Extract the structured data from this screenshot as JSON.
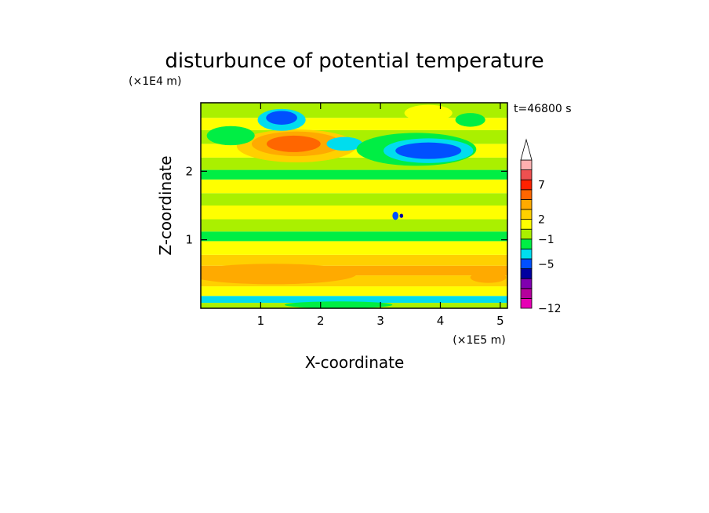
{
  "chart_data": {
    "type": "heatmap",
    "title": "disturbunce of potential temperature",
    "xlabel": "X-coordinate",
    "ylabel": "Z-coordinate",
    "x_unit": "(×1E5 m)",
    "y_unit": "(×1E4 m)",
    "time_label": "t=46800 s",
    "xlim": [
      0,
      5.12
    ],
    "ylim": [
      0,
      3.0
    ],
    "x_ticks": [
      1,
      2,
      3,
      4,
      5
    ],
    "y_ticks": [
      1,
      2
    ],
    "x_tick_labels": [
      "1",
      "2",
      "3",
      "4",
      "5"
    ],
    "y_tick_labels": [
      "1",
      "2"
    ],
    "colorbar": {
      "labels": [
        {
          "value": 7,
          "text": "7"
        },
        {
          "value": 2,
          "text": "2"
        },
        {
          "value": -1,
          "text": "−1"
        },
        {
          "value": -5,
          "text": "−5"
        },
        {
          "value": -12,
          "text": "−12"
        }
      ],
      "level_colors": [
        "#e600b4",
        "#b4009c",
        "#8000b0",
        "#0000a0",
        "#0050ff",
        "#00ddee",
        "#00ee44",
        "#aaf000",
        "#ffff00",
        "#ffd000",
        "#ffaa00",
        "#ff6600",
        "#ff2200",
        "#ee5050",
        "#ffb0b0"
      ],
      "extend": "max"
    },
    "bands": [
      {
        "zb": 0.0,
        "zt": 0.08,
        "cat": 4
      },
      {
        "zb": 0.08,
        "zt": 0.18,
        "cat": 2
      },
      {
        "zb": 0.18,
        "zt": 0.32,
        "cat": 5
      },
      {
        "zb": 0.32,
        "zt": 0.48,
        "cat": 6
      },
      {
        "zb": 0.48,
        "zt": 0.62,
        "cat": 7
      },
      {
        "zb": 0.62,
        "zt": 0.78,
        "cat": 6
      },
      {
        "zb": 0.78,
        "zt": 0.98,
        "cat": 5
      },
      {
        "zb": 0.98,
        "zt": 1.12,
        "cat": 3
      },
      {
        "zb": 1.12,
        "zt": 1.3,
        "cat": 4
      },
      {
        "zb": 1.3,
        "zt": 1.5,
        "cat": 5
      },
      {
        "zb": 1.5,
        "zt": 1.68,
        "cat": 4
      },
      {
        "zb": 1.68,
        "zt": 1.88,
        "cat": 5
      },
      {
        "zb": 1.88,
        "zt": 2.02,
        "cat": 3
      },
      {
        "zb": 2.02,
        "zt": 2.2,
        "cat": 4
      },
      {
        "zb": 2.2,
        "zt": 2.4,
        "cat": 5
      },
      {
        "zb": 2.4,
        "zt": 2.6,
        "cat": 4
      },
      {
        "zb": 2.6,
        "zt": 2.78,
        "cat": 5
      },
      {
        "zb": 2.78,
        "zt": 3.0,
        "cat": 4
      }
    ],
    "blobs": [
      {
        "x": 1.6,
        "z": 2.37,
        "rx": 1.0,
        "rz": 0.24,
        "cat": 6
      },
      {
        "x": 1.6,
        "z": 2.4,
        "rx": 0.75,
        "rz": 0.18,
        "cat": 7
      },
      {
        "x": 1.55,
        "z": 2.4,
        "rx": 0.45,
        "rz": 0.12,
        "cat": 8
      },
      {
        "x": 0.5,
        "z": 2.52,
        "rx": 0.4,
        "rz": 0.14,
        "cat": 3
      },
      {
        "x": 1.35,
        "z": 2.75,
        "rx": 0.4,
        "rz": 0.16,
        "cat": 2
      },
      {
        "x": 1.35,
        "z": 2.78,
        "rx": 0.26,
        "rz": 0.1,
        "cat": 1
      },
      {
        "x": 2.4,
        "z": 2.4,
        "rx": 0.3,
        "rz": 0.1,
        "cat": 2
      },
      {
        "x": 3.6,
        "z": 2.32,
        "rx": 1.0,
        "rz": 0.24,
        "cat": 3
      },
      {
        "x": 3.8,
        "z": 2.3,
        "rx": 0.75,
        "rz": 0.18,
        "cat": 2
      },
      {
        "x": 3.8,
        "z": 2.3,
        "rx": 0.55,
        "rz": 0.12,
        "cat": 1
      },
      {
        "x": 3.8,
        "z": 2.85,
        "rx": 0.4,
        "rz": 0.12,
        "cat": 5
      },
      {
        "x": 4.5,
        "z": 2.75,
        "rx": 0.25,
        "rz": 0.1,
        "cat": 3
      },
      {
        "x": 1.2,
        "z": 0.5,
        "rx": 1.4,
        "rz": 0.15,
        "cat": 7
      },
      {
        "x": 4.8,
        "z": 0.45,
        "rx": 0.3,
        "rz": 0.08,
        "cat": 7
      },
      {
        "x": 2.3,
        "z": 0.05,
        "rx": 0.9,
        "rz": 0.05,
        "cat": 3
      },
      {
        "x": 3.35,
        "z": 1.35,
        "rx": 0.03,
        "rz": 0.03,
        "cat": 0
      },
      {
        "x": 3.25,
        "z": 1.35,
        "rx": 0.05,
        "rz": 0.06,
        "cat": 1
      }
    ],
    "color_index": [
      "#0000a0",
      "#0050ff",
      "#00ddee",
      "#00ee44",
      "#aaf000",
      "#ffff00",
      "#ffd000",
      "#ffaa00",
      "#ff6600"
    ]
  }
}
